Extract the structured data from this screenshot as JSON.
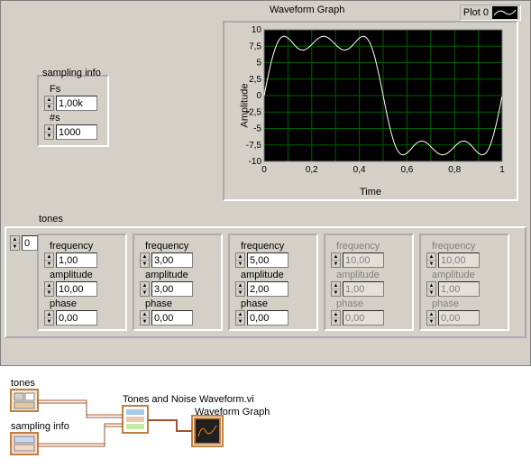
{
  "waveform": {
    "title": "Waveform Graph",
    "legend_label": "Plot 0",
    "y_axis_label": "Amplitude",
    "x_axis_label": "Time",
    "ylim": [
      -10,
      10
    ],
    "yticks": [
      -10,
      -7.5,
      -5,
      -2.5,
      0,
      2.5,
      5,
      7.5,
      10
    ],
    "ytick_labels": [
      "-10",
      "-7,5",
      "-5",
      "-2,5",
      "0",
      "2,5",
      "5",
      "7,5",
      "10"
    ],
    "xlim": [
      0,
      1
    ],
    "xticks": [
      0,
      0.2,
      0.4,
      0.6,
      0.8,
      1
    ],
    "xtick_labels": [
      "0",
      "0,2",
      "0,4",
      "0,6",
      "0,8",
      "1"
    ],
    "plot_bg": "#000000",
    "grid_color": "#006000",
    "trace_color": "#ffffff",
    "panel_bg": "#d4d0c8"
  },
  "sampling": {
    "group_label": "sampling info",
    "fs_label": "Fs",
    "fs_value": "1,00k",
    "ns_label": "#s",
    "ns_value": "1000"
  },
  "tones": {
    "label": "tones",
    "index_value": "0",
    "field_labels": {
      "frequency": "frequency",
      "amplitude": "amplitude",
      "phase": "phase"
    },
    "items": [
      {
        "frequency": "1,00",
        "amplitude": "10,00",
        "phase": "0,00",
        "enabled": true
      },
      {
        "frequency": "3,00",
        "amplitude": "3,00",
        "phase": "0,00",
        "enabled": true
      },
      {
        "frequency": "5,00",
        "amplitude": "2,00",
        "phase": "0,00",
        "enabled": true
      },
      {
        "frequency": "10,00",
        "amplitude": "1,00",
        "phase": "0,00",
        "enabled": false
      },
      {
        "frequency": "10,00",
        "amplitude": "1,00",
        "phase": "0,00",
        "enabled": false
      }
    ]
  },
  "blockdiagram": {
    "tones_label": "tones",
    "sampling_label": "sampling info",
    "vi_label": "Tones and Noise Waveform.vi",
    "graph_label": "Waveform Graph",
    "wire_color": "#a0522d",
    "node_border": "#c08040"
  }
}
